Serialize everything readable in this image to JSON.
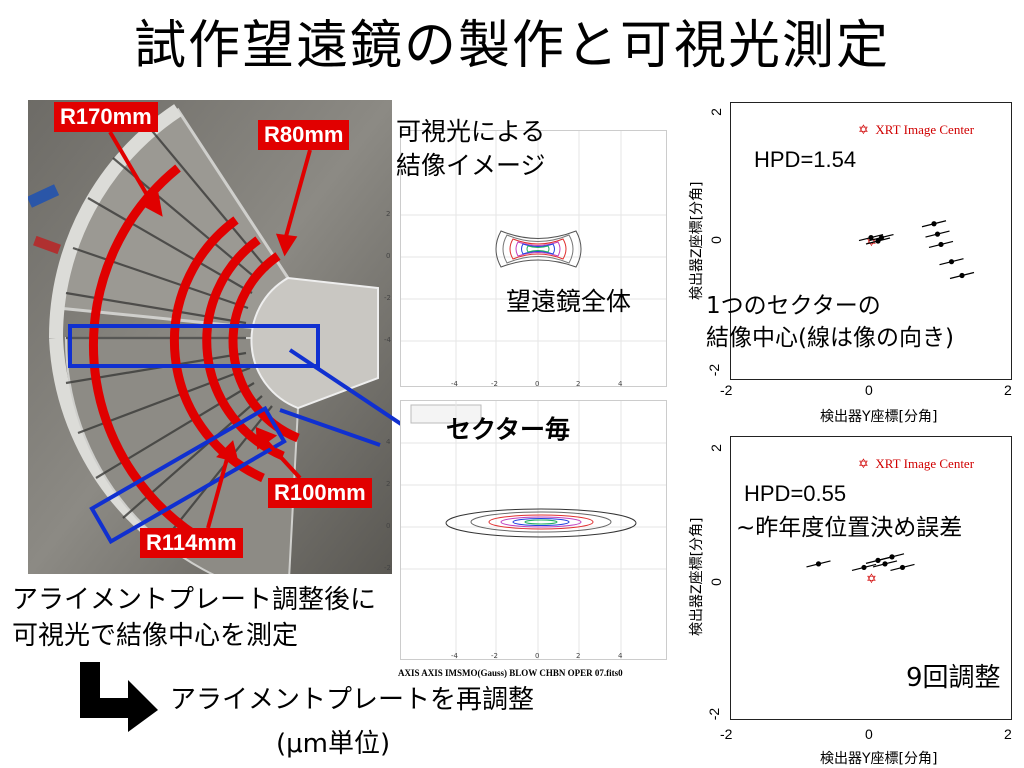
{
  "slide": {
    "title": "試作望遠鏡の製作と可視光測定"
  },
  "photo": {
    "radius_labels": [
      "R170mm",
      "R80mm",
      "R100mm",
      "R114mm"
    ]
  },
  "visible_image": {
    "caption_line1": "可視光による",
    "caption_line2": "結像イメージ",
    "whole_label": "望遠鏡全体",
    "sector_label": "セクター毎",
    "top_ticks_x": [
      "-4",
      "-2",
      "0",
      "2",
      "4"
    ],
    "top_ticks_y": [
      "2",
      "0",
      "-2",
      "-4"
    ],
    "bottom_ticks_x": [
      "-4",
      "-2",
      "0",
      "2",
      "4"
    ],
    "bottom_ticks_y": [
      "4",
      "2",
      "0",
      "-2"
    ],
    "footer": "AXIS AXIS IMSMO(Gauss) BLOW CHBN OPER 07.fits0"
  },
  "plot_top": {
    "legend": "XRT Image Center",
    "hpd": "HPD=1.54",
    "annotation_line1": "1つのセクターの",
    "annotation_line2": "結像中心(線は像の向き)",
    "xlabel": "検出器Y座標[分角]",
    "ylabel": "検出器Z座標[分角]",
    "x_ticks": [
      "-2",
      "0",
      "2"
    ],
    "y_ticks": [
      "2",
      "0",
      "-2"
    ]
  },
  "plot_bottom": {
    "legend": "XRT Image Center",
    "hpd": "HPD=0.55",
    "note": "~昨年度位置決め誤差",
    "adjust_label": "9回調整",
    "xlabel": "検出器Y座標[分角]",
    "ylabel": "検出器Z座標[分角]",
    "x_ticks": [
      "-2",
      "0",
      "2"
    ],
    "y_ticks": [
      "2",
      "0",
      "-2"
    ]
  },
  "notes": {
    "line1": "アライメントプレート調整後に",
    "line2": "可視光で結像中心を測定",
    "readjust": "アライメントプレートを再調整",
    "unit": "(μm単位)"
  },
  "chart_data": [
    {
      "type": "scatter",
      "title": "",
      "xlabel": "検出器Y座標[分角]",
      "ylabel": "検出器Z座標[分角]",
      "xlim": [
        -2,
        2
      ],
      "ylim": [
        -2,
        2
      ],
      "legend": [
        "XRT Image Center"
      ],
      "x": [
        0.0,
        0.1,
        0.15,
        0.9,
        0.95,
        1.0,
        1.15,
        1.3
      ],
      "y": [
        0.05,
        0.0,
        0.05,
        0.25,
        0.1,
        -0.05,
        -0.3,
        -0.5
      ]
    },
    {
      "type": "scatter",
      "title": "",
      "xlabel": "検出器Y座標[分角]",
      "ylabel": "検出器Z座標[分角]",
      "xlim": [
        -2,
        2
      ],
      "ylim": [
        -2,
        2
      ],
      "legend": [
        "XRT Image Center"
      ],
      "x": [
        -0.75,
        -0.1,
        0.1,
        0.2,
        0.3,
        0.45
      ],
      "y": [
        0.2,
        0.15,
        0.25,
        0.2,
        0.3,
        0.15
      ]
    }
  ]
}
